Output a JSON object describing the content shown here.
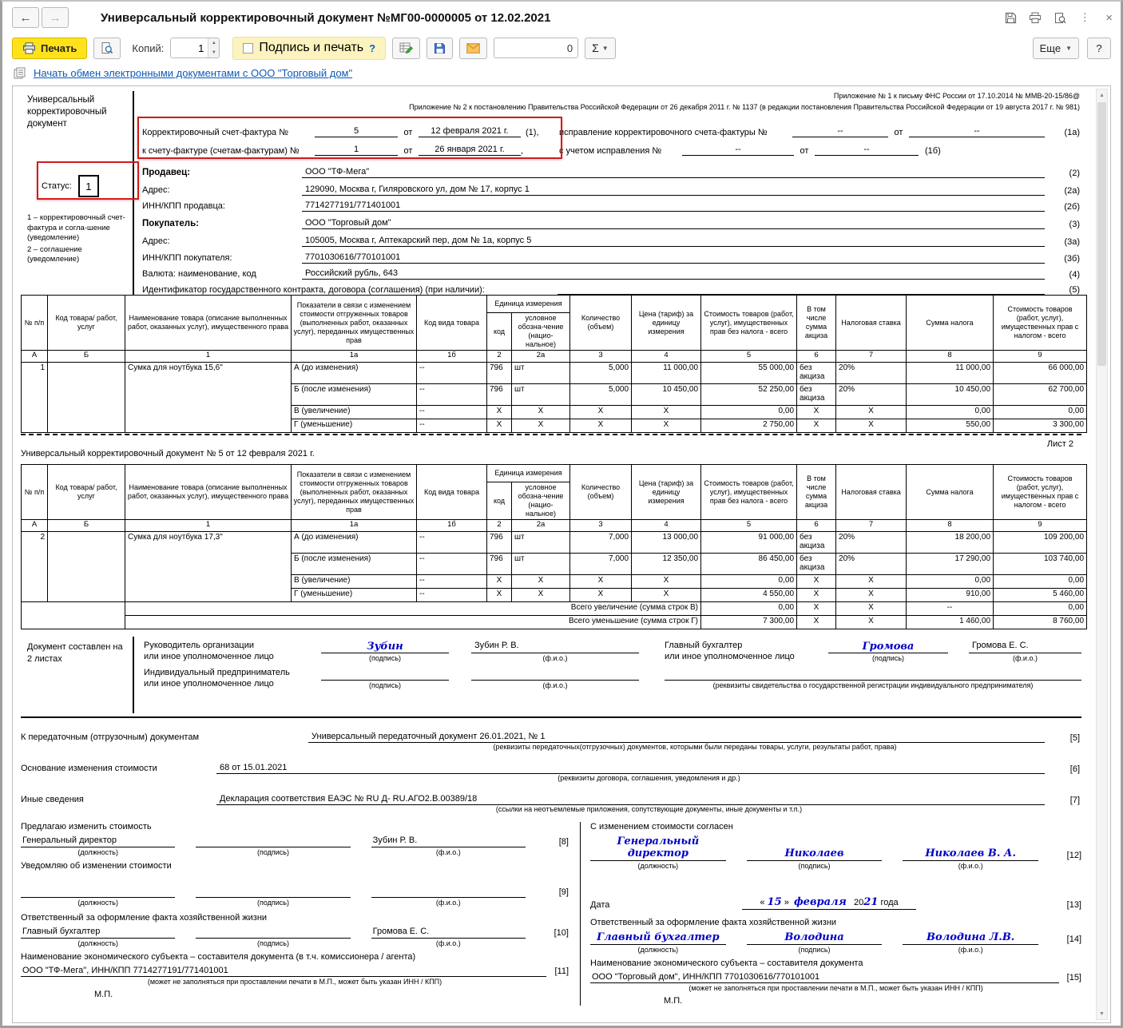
{
  "win": {
    "title": "Универсальный корректировочный документ №МГ00-0000005 от 12.02.2021",
    "more": "Еще",
    "help": "?",
    "close": "×",
    "dots": "⋮",
    "back": "←",
    "forward": "→"
  },
  "tb": {
    "print": "Печать",
    "copies_label": "Копий:",
    "copies_value": "1",
    "sign_and_print": "Подпись и печать",
    "sign_help": "?",
    "counter_value": "0",
    "sigma": "Σ"
  },
  "link": {
    "edo": "Начать обмен электронными документами с ООО \"Торговый дом\""
  },
  "form": {
    "doc_type": "Универсальный корректировочный документ",
    "status_label": "Статус:",
    "status_value": "1",
    "note1": "1 – корректировочный счет-фактура и согла-шение (уведомление)",
    "note2": "2 – соглашение (уведомление)",
    "appx1": "Приложение № 1 к письму ФНС России от 17.10.2014 № ММВ-20-15/86@",
    "appx2": "Приложение № 2 к постановлению Правительства Российской Федерации от 26 декабря 2011 г. № 1137 (в редакции постановления Правительства Российской Федерации от 19 августа 2017 г. № 981)",
    "l1_label": "Корректировочный счет-фактура №",
    "l1_num": "5",
    "ot": "от",
    "l1_date": "12 февраля 2021 г.",
    "l1_mark": "(1),",
    "l1_fix_label": "исправление корректировочного счета-фактуры №",
    "l1_fix_num": "--",
    "l1_fix_date": "--",
    "l1_fix_mark": "(1а)",
    "l2_label": "к счету-фактуре (счетам-фактурам) №",
    "l2_num": "1",
    "l2_date": "26 января 2021 г.",
    "l2_comma": ",",
    "l2_fix_label": "с учетом исправления №",
    "l2_fix_num": "--",
    "l2_fix_date": "--",
    "l2_fix_mark": "(1б)",
    "seller_label": "Продавец:",
    "seller": "ООО \"ТФ-Мега\"",
    "m2": "(2)",
    "addr_label": "Адрес:",
    "seller_addr": "129090, Москва г, Гиляровского ул, дом № 17, корпус 1",
    "m2a": "(2а)",
    "seller_inn_label": "ИНН/КПП продавца:",
    "seller_inn": "7714277191/771401001",
    "m2b": "(2б)",
    "buyer_label": "Покупатель:",
    "buyer": "ООО \"Торговый дом\"",
    "m3": "(3)",
    "buyer_addr": "105005, Москва г, Аптекарский пер, дом № 1а, корпус 5",
    "m3a": "(3а)",
    "buyer_inn_label": "ИНН/КПП покупателя:",
    "buyer_inn": "7701030616/770101001",
    "m3b": "(3б)",
    "cur_label": "Валюта: наименование, код",
    "cur_value": "Российский рубль, 643",
    "m4": "(4)",
    "gov_label": "Идентификатор государственного контракта, договора (соглашения) (при наличии):",
    "m5": "(5)"
  },
  "th": {
    "npp": "№ п/п",
    "code": "Код товара/ работ, услуг",
    "name": "Наименование товара (описание выполненных работ, оказанных услуг), имущественного права",
    "indicators": "Показатели в связи с изменением стоимости отгруженных товаров (выполненных работ, оказанных услуг), переданных имущественных прав",
    "kind": "Код вида товара",
    "unit_group": "Единица измерения",
    "unit_code": "код",
    "unit_symbol": "условное обозна-чение (нацио-нальное)",
    "qty": "Количество (объем)",
    "price": "Цена (тариф) за единицу измерения",
    "cost_wo": "Стоимость товаров (работ, услуг), имущественных прав без налога - всего",
    "excise": "В том числе сумма акциза",
    "rate": "Налоговая ставка",
    "tax": "Сумма налога",
    "cost_w": "Стоимость товаров (работ, услуг), имущественных прав с налогом - всего"
  },
  "t1": {
    "rows": [
      {
        "cl": "idx",
        "cells": [
          {
            "t": "А",
            "cl": "c"
          },
          {
            "t": "Б",
            "cl": "c"
          },
          {
            "t": "1",
            "cl": "c"
          },
          {
            "t": "1а",
            "cl": "c"
          },
          {
            "t": "1б",
            "cl": "c"
          },
          {
            "t": "2",
            "cl": "c"
          },
          {
            "t": "2а",
            "cl": "c"
          },
          {
            "t": "3",
            "cl": "c"
          },
          {
            "t": "4",
            "cl": "c"
          },
          {
            "t": "5",
            "cl": "c"
          },
          {
            "t": "6",
            "cl": "c"
          },
          {
            "t": "7",
            "cl": "c"
          },
          {
            "t": "8",
            "cl": "c"
          },
          {
            "t": "9",
            "cl": "c"
          }
        ]
      },
      {
        "cl": "tall",
        "cells": [
          {
            "t": "1",
            "rs": 4,
            "cl": "rt"
          },
          {
            "t": "",
            "rs": 4
          },
          {
            "t": "Сумка для ноутбука 15,6\"",
            "rs": 4,
            "cl": "lt"
          },
          {
            "t": "А (до изменения)"
          },
          {
            "t": "--"
          },
          {
            "t": "796"
          },
          {
            "t": "шт"
          },
          {
            "t": "5,000",
            "cl": "r"
          },
          {
            "t": "11 000,00",
            "cl": "r"
          },
          {
            "t": "55 000,00",
            "cl": "r"
          },
          {
            "t": "без акциза"
          },
          {
            "t": "20%"
          },
          {
            "t": "11 000,00",
            "cl": "r"
          },
          {
            "t": "66 000,00",
            "cl": "r"
          }
        ]
      },
      {
        "cl": "tall",
        "cells": [
          {
            "t": "Б (после изменения)"
          },
          {
            "t": "--"
          },
          {
            "t": "796"
          },
          {
            "t": "шт"
          },
          {
            "t": "5,000",
            "cl": "r"
          },
          {
            "t": "10 450,00",
            "cl": "r"
          },
          {
            "t": "52 250,00",
            "cl": "r"
          },
          {
            "t": "без акциза"
          },
          {
            "t": "20%"
          },
          {
            "t": "10 450,00",
            "cl": "r"
          },
          {
            "t": "62 700,00",
            "cl": "r"
          }
        ]
      },
      {
        "cells": [
          {
            "t": "В (увеличение)"
          },
          {
            "t": "--"
          },
          {
            "t": "X",
            "cl": "c"
          },
          {
            "t": "X",
            "cl": "c"
          },
          {
            "t": "X",
            "cl": "c"
          },
          {
            "t": "X",
            "cl": "c"
          },
          {
            "t": "0,00",
            "cl": "r"
          },
          {
            "t": "X",
            "cl": "c"
          },
          {
            "t": "X",
            "cl": "c"
          },
          {
            "t": "0,00",
            "cl": "r"
          },
          {
            "t": "0,00",
            "cl": "r"
          }
        ]
      },
      {
        "cells": [
          {
            "t": "Г (уменьшение)"
          },
          {
            "t": "--"
          },
          {
            "t": "X",
            "cl": "c"
          },
          {
            "t": "X",
            "cl": "c"
          },
          {
            "t": "X",
            "cl": "c"
          },
          {
            "t": "X",
            "cl": "c"
          },
          {
            "t": "2 750,00",
            "cl": "r"
          },
          {
            "t": "X",
            "cl": "c"
          },
          {
            "t": "X",
            "cl": "c"
          },
          {
            "t": "550,00",
            "cl": "r"
          },
          {
            "t": "3 300,00",
            "cl": "r"
          }
        ]
      }
    ]
  },
  "sheet2": {
    "list_label": "Лист 2",
    "doc_line": "Универсальный корректировочный документ № 5 от 12 февраля 2021 г."
  },
  "t2": {
    "rows": [
      {
        "cl": "idx",
        "cells": [
          {
            "t": "А",
            "cl": "c"
          },
          {
            "t": "Б",
            "cl": "c"
          },
          {
            "t": "1",
            "cl": "c"
          },
          {
            "t": "1а",
            "cl": "c"
          },
          {
            "t": "1б",
            "cl": "c"
          },
          {
            "t": "2",
            "cl": "c"
          },
          {
            "t": "2а",
            "cl": "c"
          },
          {
            "t": "3",
            "cl": "c"
          },
          {
            "t": "4",
            "cl": "c"
          },
          {
            "t": "5",
            "cl": "c"
          },
          {
            "t": "6",
            "cl": "c"
          },
          {
            "t": "7",
            "cl": "c"
          },
          {
            "t": "8",
            "cl": "c"
          },
          {
            "t": "9",
            "cl": "c"
          }
        ]
      },
      {
        "cl": "tall",
        "cells": [
          {
            "t": "2",
            "rs": 4,
            "cl": "rt"
          },
          {
            "t": "",
            "rs": 4
          },
          {
            "t": "Сумка для ноутбука 17,3\"",
            "rs": 4,
            "cl": "lt"
          },
          {
            "t": "А (до изменения)"
          },
          {
            "t": "--"
          },
          {
            "t": "796"
          },
          {
            "t": "шт"
          },
          {
            "t": "7,000",
            "cl": "r"
          },
          {
            "t": "13 000,00",
            "cl": "r"
          },
          {
            "t": "91 000,00",
            "cl": "r"
          },
          {
            "t": "без акциза"
          },
          {
            "t": "20%"
          },
          {
            "t": "18 200,00",
            "cl": "r"
          },
          {
            "t": "109 200,00",
            "cl": "r"
          }
        ]
      },
      {
        "cl": "tall",
        "cells": [
          {
            "t": "Б (после изменения)"
          },
          {
            "t": "--"
          },
          {
            "t": "796"
          },
          {
            "t": "шт"
          },
          {
            "t": "7,000",
            "cl": "r"
          },
          {
            "t": "12 350,00",
            "cl": "r"
          },
          {
            "t": "86 450,00",
            "cl": "r"
          },
          {
            "t": "без акциза"
          },
          {
            "t": "20%"
          },
          {
            "t": "17 290,00",
            "cl": "r"
          },
          {
            "t": "103 740,00",
            "cl": "r"
          }
        ]
      },
      {
        "cells": [
          {
            "t": "В (увеличение)"
          },
          {
            "t": "--"
          },
          {
            "t": "X",
            "cl": "c"
          },
          {
            "t": "X",
            "cl": "c"
          },
          {
            "t": "X",
            "cl": "c"
          },
          {
            "t": "X",
            "cl": "c"
          },
          {
            "t": "0,00",
            "cl": "r"
          },
          {
            "t": "X",
            "cl": "c"
          },
          {
            "t": "X",
            "cl": "c"
          },
          {
            "t": "0,00",
            "cl": "r"
          },
          {
            "t": "0,00",
            "cl": "r"
          }
        ]
      },
      {
        "cells": [
          {
            "t": "Г (уменьшение)"
          },
          {
            "t": "--"
          },
          {
            "t": "X",
            "cl": "c"
          },
          {
            "t": "X",
            "cl": "c"
          },
          {
            "t": "X",
            "cl": "c"
          },
          {
            "t": "X",
            "cl": "c"
          },
          {
            "t": "4 550,00",
            "cl": "r"
          },
          {
            "t": "X",
            "cl": "c"
          },
          {
            "t": "X",
            "cl": "c"
          },
          {
            "t": "910,00",
            "cl": "r"
          },
          {
            "t": "5 460,00",
            "cl": "r"
          }
        ]
      },
      {
        "cl": "sum",
        "cells": [
          {
            "t": "",
            "rs": 2,
            "cs": 2
          },
          {
            "t": "Всего увеличение (сумма строк В)",
            "cs": 7,
            "cl": "r"
          },
          {
            "t": "0,00",
            "cl": "r"
          },
          {
            "t": "X",
            "cl": "c"
          },
          {
            "t": "X",
            "cl": "c"
          },
          {
            "t": "--",
            "cl": "c"
          },
          {
            "t": "0,00",
            "cl": "r"
          }
        ]
      },
      {
        "cl": "sum",
        "cells": [
          {
            "t": "Всего уменьшение (сумма строк Г)",
            "cs": 7,
            "cl": "r"
          },
          {
            "t": "7 300,00",
            "cl": "r"
          },
          {
            "t": "X",
            "cl": "c"
          },
          {
            "t": "X",
            "cl": "c"
          },
          {
            "t": "1 460,00",
            "cl": "r"
          },
          {
            "t": "8 760,00",
            "cl": "r"
          }
        ]
      }
    ]
  },
  "sig": {
    "made_on": "Документ составлен на 2 листах",
    "head1": "Руководитель организации",
    "head2": "или иное уполномоченное лицо",
    "head_sig": "Зубин",
    "head_name": "Зубин Р. В.",
    "podpis": "(подпись)",
    "fio": "(ф.и.о.)",
    "acc1": "Главный бухгалтер",
    "acc2": "или иное уполномоченное лицо",
    "acc_sig": "Громова",
    "acc_name": "Громова Е. С.",
    "ip1": "Индивидуальный предприниматель",
    "ip2": "или иное уполномоченное лицо",
    "ip_req": "(реквизиты свидетельства о государственной  регистрации индивидуального предпринимателя)"
  },
  "refs": {
    "transfer_label": "К передаточным (отгрузочным) документам",
    "transfer_value": "Универсальный передаточный документ 26.01.2021, № 1",
    "transfer_mark": "[5]",
    "transfer_cap": "(реквизиты передаточных(отгрузочных) документов, которыми были переданы товары, услуги, результаты работ, права)",
    "basis_label": "Основание изменения стоимости",
    "basis_value": "68 от 15.01.2021",
    "basis_mark": "[6]",
    "basis_cap": "(реквизиты договора, соглашения, уведомления и др.)",
    "other_label": "Иные сведения",
    "other_value": "Декларация соответствия ЕАЭС № RU Д- RU.АГО2.В.00389/18",
    "other_mark": "[7]",
    "other_cap": "(ссылки на неотъемлемые приложения, сопутствующие документы, иные документы и т.п.)"
  },
  "bl": {
    "propose": "Предлагаю изменить стоимость",
    "position": "Генеральный директор",
    "name": "Зубин Р. В.",
    "mark8": "[8]",
    "dolzh": "(должность)",
    "podpis": "(подпись)",
    "fio": "(ф.и.о.)",
    "notify": "Уведомляю об изменении стоимости",
    "mark9": "[9]",
    "resp": "Ответственный за оформление факта хозяйственной жизни",
    "resp_position": "Главный бухгалтер",
    "resp_name": "Громова Е. С.",
    "mark10": "[10]",
    "entity_label": "Наименование экономического субъекта – составителя документа (в т.ч. комиссионера / агента)",
    "entity_value": "ООО \"ТФ-Мега\", ИНН/КПП 7714277191/771401001",
    "mark11": "[11]",
    "entity_cap": "(может не заполняться при проставлении печати в М.П., может быть указан ИНН / КПП)",
    "mp": "М.П."
  },
  "br": {
    "agree": "С изменением стоимости согласен",
    "position": "Генеральный директор",
    "sig": "Николаев",
    "name": "Николаев В. А.",
    "mark12": "[12]",
    "dolzh": "(должность)",
    "podpis": "(подпись)",
    "fio": "(ф.и.о.)",
    "date_label": "Дата",
    "q1": "«",
    "day": "15",
    "q2": "»",
    "month": "февраля",
    "year_black": "20",
    "year_blue": "21",
    "year_suffix": "года",
    "mark13": "[13]",
    "resp": "Ответственный за оформление факта хозяйственной жизни",
    "resp_position": "Главный бухгалтер",
    "resp_sig": "Володина",
    "resp_name": "Володина Л.В.",
    "mark14": "[14]",
    "entity_label": "Наименование экономического субъекта – составителя документа",
    "entity_value": "ООО \"Торговый дом\", ИНН/КПП 7701030616/770101001",
    "mark15": "[15]",
    "entity_cap": "(может не заполняться при проставлении печати в М.П., может быть указан ИНН / КПП)",
    "mp": "М.П."
  }
}
